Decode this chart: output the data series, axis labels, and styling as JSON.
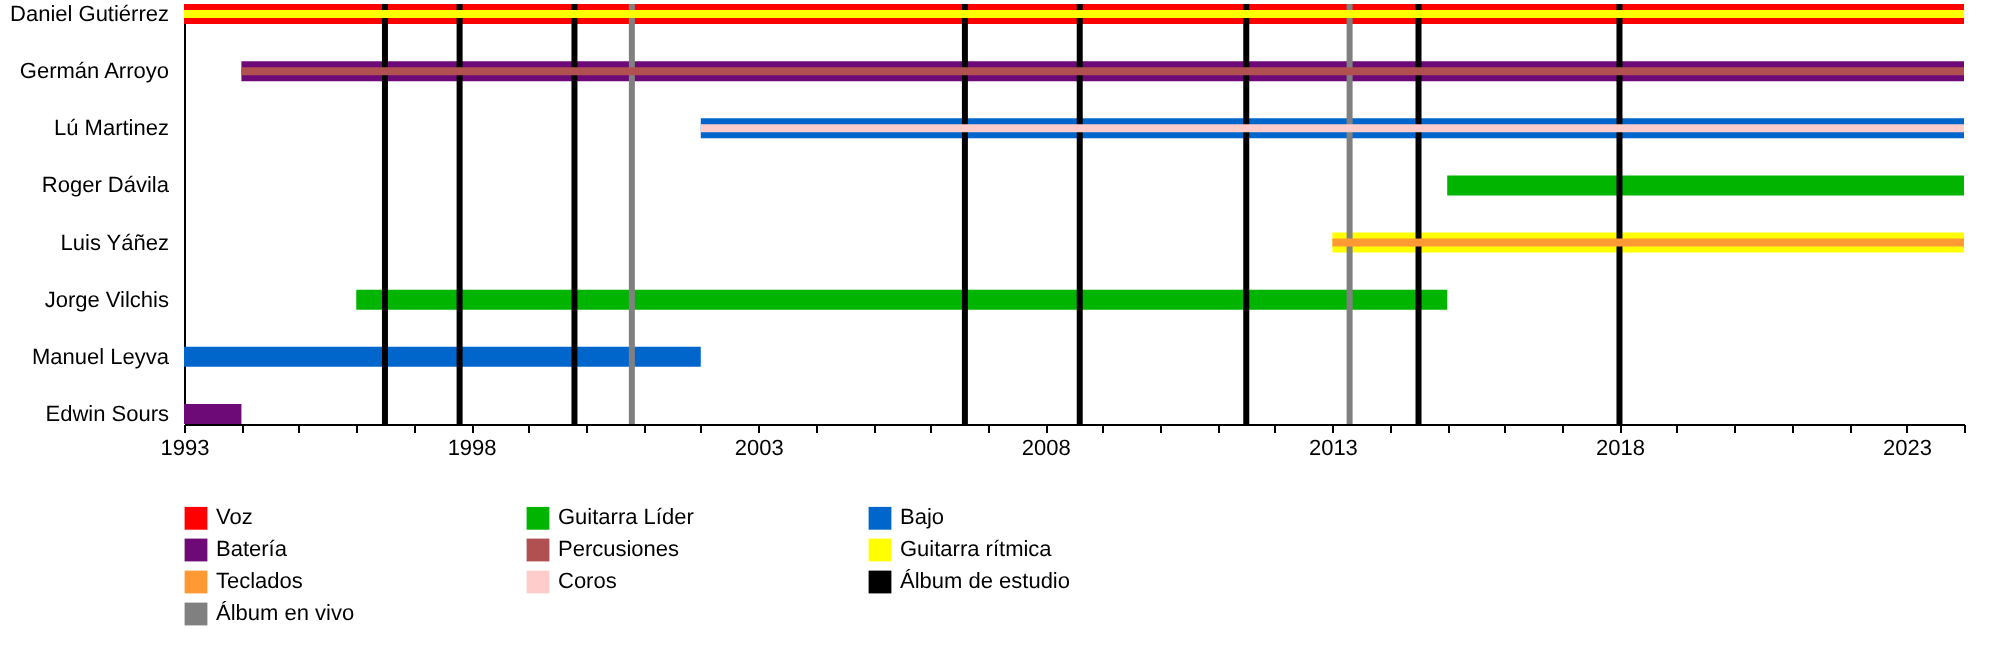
{
  "chart_data": {
    "type": "bar",
    "orientation": "horizontal",
    "categories": [
      "Daniel Gutiérrez",
      "Germán Arroyo",
      "Lú Martinez",
      "Roger Dávila",
      "Luis Yáñez",
      "Jorge Vilchis",
      "Manuel Leyva",
      "Edwin Sours"
    ],
    "xlim": [
      1993,
      2024
    ],
    "xticks": [
      1993,
      {
        "value": 1994,
        "label": null
      },
      {
        "value": 1995,
        "label": null
      },
      {
        "value": 1996,
        "label": null
      },
      {
        "value": 1997,
        "label": null
      },
      1998,
      {
        "value": 1999,
        "label": null
      },
      {
        "value": 2000,
        "label": null
      },
      {
        "value": 2001,
        "label": null
      },
      {
        "value": 2002,
        "label": null
      },
      2003,
      {
        "value": 2004,
        "label": null
      },
      {
        "value": 2005,
        "label": null
      },
      {
        "value": 2006,
        "label": null
      },
      {
        "value": 2007,
        "label": null
      },
      2008,
      {
        "value": 2009,
        "label": null
      },
      {
        "value": 2010,
        "label": null
      },
      {
        "value": 2011,
        "label": null
      },
      {
        "value": 2012,
        "label": null
      },
      2013,
      {
        "value": 2014,
        "label": null
      },
      {
        "value": 2015,
        "label": null
      },
      {
        "value": 2016,
        "label": null
      },
      {
        "value": 2017,
        "label": null
      },
      2018,
      {
        "value": 2019,
        "label": null
      },
      {
        "value": 2020,
        "label": null
      },
      {
        "value": 2021,
        "label": null
      },
      {
        "value": 2022,
        "label": null
      },
      2023,
      {
        "value": 2024,
        "label": null
      }
    ],
    "legend": "bottom",
    "series": [
      {
        "name": "Voz",
        "color": "#ff0000",
        "base": [
          1993,
          null,
          null,
          null,
          null,
          null,
          null,
          null
        ],
        "values": [
          31,
          null,
          null,
          null,
          null,
          null,
          null,
          null
        ]
      },
      {
        "name": "Guitarra Líder",
        "color": "#00b400",
        "base": [
          null,
          null,
          null,
          2015,
          null,
          1996,
          null,
          null
        ],
        "values": [
          null,
          null,
          null,
          9,
          null,
          19,
          null,
          null
        ]
      },
      {
        "name": "Bajo",
        "color": "#0066cc",
        "base": [
          null,
          null,
          2002,
          null,
          null,
          null,
          1993,
          null
        ],
        "values": [
          null,
          null,
          22,
          null,
          null,
          null,
          9,
          null
        ]
      },
      {
        "name": "Batería",
        "color": "#6e0a78",
        "base": [
          null,
          1994,
          null,
          null,
          null,
          null,
          null,
          1993
        ],
        "values": [
          null,
          30,
          null,
          null,
          null,
          null,
          null,
          1
        ]
      },
      {
        "name": "Percusiones",
        "color": "#b05050",
        "base": [
          null,
          1994,
          null,
          null,
          null,
          null,
          null,
          null
        ],
        "values": [
          null,
          30,
          null,
          null,
          null,
          null,
          null,
          null
        ]
      },
      {
        "name": "Guitarra rítmica",
        "color": "#ffff00",
        "base": [
          1993,
          null,
          null,
          null,
          2013,
          null,
          null,
          null
        ],
        "values": [
          31,
          null,
          null,
          null,
          11,
          null,
          null,
          null
        ]
      },
      {
        "name": "Teclados",
        "color": "#ff9933",
        "base": [
          null,
          null,
          null,
          null,
          2013,
          null,
          null,
          null
        ],
        "values": [
          null,
          null,
          null,
          null,
          11,
          null,
          null,
          null
        ]
      },
      {
        "name": "Coros",
        "color": "#ffcccc",
        "base": [
          null,
          null,
          2002,
          null,
          null,
          null,
          null,
          null
        ],
        "values": [
          null,
          null,
          22,
          null,
          null,
          null,
          null,
          null
        ]
      }
    ],
    "ref_lines": [
      {
        "axis": "x",
        "value": 1996.5,
        "label": "Álbum de estudio",
        "color": "#000000"
      },
      {
        "axis": "x",
        "value": 1997.8,
        "color": "#000000"
      },
      {
        "axis": "x",
        "value": 1999.8,
        "color": "#000000"
      },
      {
        "axis": "x",
        "value": 2000.8,
        "label": "Álbum en vivo",
        "color": "#808080"
      },
      {
        "axis": "x",
        "value": 2006.6,
        "color": "#000000"
      },
      {
        "axis": "x",
        "value": 2008.6,
        "color": "#000000"
      },
      {
        "axis": "x",
        "value": 2011.5,
        "color": "#000000"
      },
      {
        "axis": "x",
        "value": 2013.3,
        "color": "#808080"
      },
      {
        "axis": "x",
        "value": 2014.5,
        "color": "#000000"
      },
      {
        "axis": "x",
        "value": 2018.0,
        "color": "#000000"
      }
    ]
  }
}
